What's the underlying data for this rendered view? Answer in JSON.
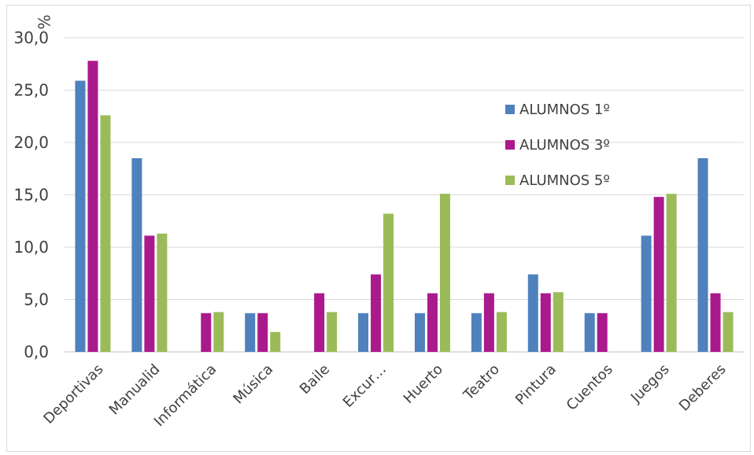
{
  "chart_data": {
    "type": "bar",
    "ylabel": "%",
    "ylim": [
      0,
      30
    ],
    "yticks": [
      "0,0",
      "5,0",
      "10,0",
      "15,0",
      "20,0",
      "25,0",
      "30,0"
    ],
    "grid": true,
    "legend_position": "right",
    "categories": [
      "Deportivas",
      "Manualid",
      "Informática",
      "Música",
      "Baile",
      "Excur…",
      "Huerto",
      "Teatro",
      "Pintura",
      "Cuentos",
      "Juegos",
      "Deberes"
    ],
    "series": [
      {
        "name": "ALUMNOS 1º",
        "color": "#4f81bd",
        "values": [
          25.9,
          18.5,
          0,
          3.7,
          0,
          3.7,
          3.7,
          3.7,
          7.4,
          3.7,
          11.1,
          18.5
        ]
      },
      {
        "name": "ALUMNOS 3º",
        "color": "#aa1a8c",
        "values": [
          27.8,
          11.1,
          3.7,
          3.7,
          5.6,
          7.4,
          5.6,
          5.6,
          5.6,
          3.7,
          14.8,
          5.6
        ]
      },
      {
        "name": "ALUMNOS 5º",
        "color": "#9bbb59",
        "values": [
          22.6,
          11.3,
          3.8,
          1.9,
          3.8,
          13.2,
          15.1,
          3.8,
          5.7,
          0,
          15.1,
          3.8
        ]
      }
    ]
  }
}
